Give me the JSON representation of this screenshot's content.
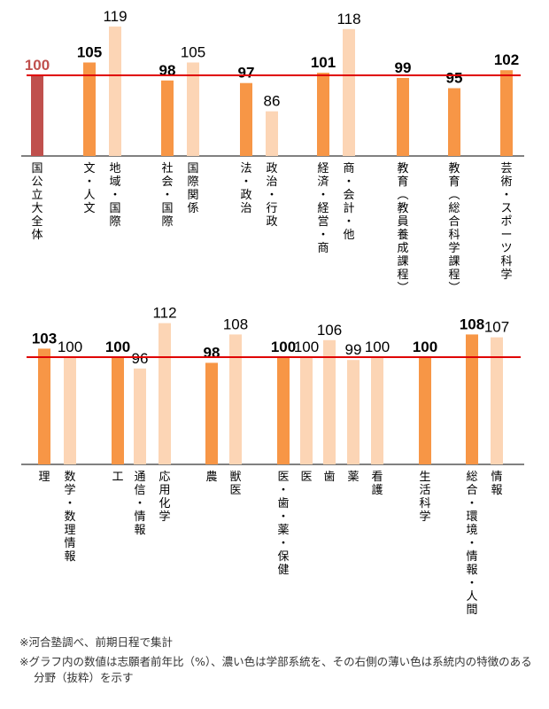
{
  "colors": {
    "dark": "#F79646",
    "light": "#FCD5B5",
    "total": "#C0504D",
    "refline": "#E00000",
    "label_text": "#000000"
  },
  "chart_data": [
    {
      "type": "bar",
      "reference_line": 100,
      "categories": [
        "国公立大全体",
        "文・人文",
        "地域・国際",
        "社会・国際",
        "国際関係",
        "法・政治",
        "政治・行政",
        "経済・経営・商",
        "商・会計・他",
        "教育（教員養成課程）",
        "教育（総合科学課程）",
        "芸術・スポーツ科学"
      ],
      "values": [
        100,
        105,
        119,
        98,
        105,
        97,
        86,
        101,
        118,
        99,
        95,
        102
      ],
      "kinds": [
        "total",
        "dark",
        "light",
        "dark",
        "light",
        "dark",
        "light",
        "dark",
        "light",
        "dark",
        "dark",
        "dark"
      ]
    },
    {
      "type": "bar",
      "reference_line": 100,
      "categories": [
        "理",
        "数学・数理情報",
        "工",
        "通信・情報",
        "応用化学",
        "農",
        "獣医",
        "医・歯・薬・保健",
        "医",
        "歯",
        "薬",
        "看護",
        "生活科学",
        "総合・環境・情報・人間",
        "情報"
      ],
      "values": [
        103,
        100,
        100,
        96,
        112,
        98,
        108,
        100,
        100,
        106,
        99,
        100,
        100,
        108,
        107
      ],
      "kinds": [
        "dark",
        "light",
        "dark",
        "light",
        "light",
        "dark",
        "light",
        "dark",
        "light",
        "light",
        "light",
        "light",
        "dark",
        "dark",
        "light"
      ]
    }
  ],
  "notes": {
    "line1": "※河合塾調べ、前期日程で集計",
    "line2": "※グラフ内の数値は志願者前年比（%）、濃い色は学部系統を、その右側の薄い色は系統内の特徴のある分野（抜粋）を示す"
  }
}
